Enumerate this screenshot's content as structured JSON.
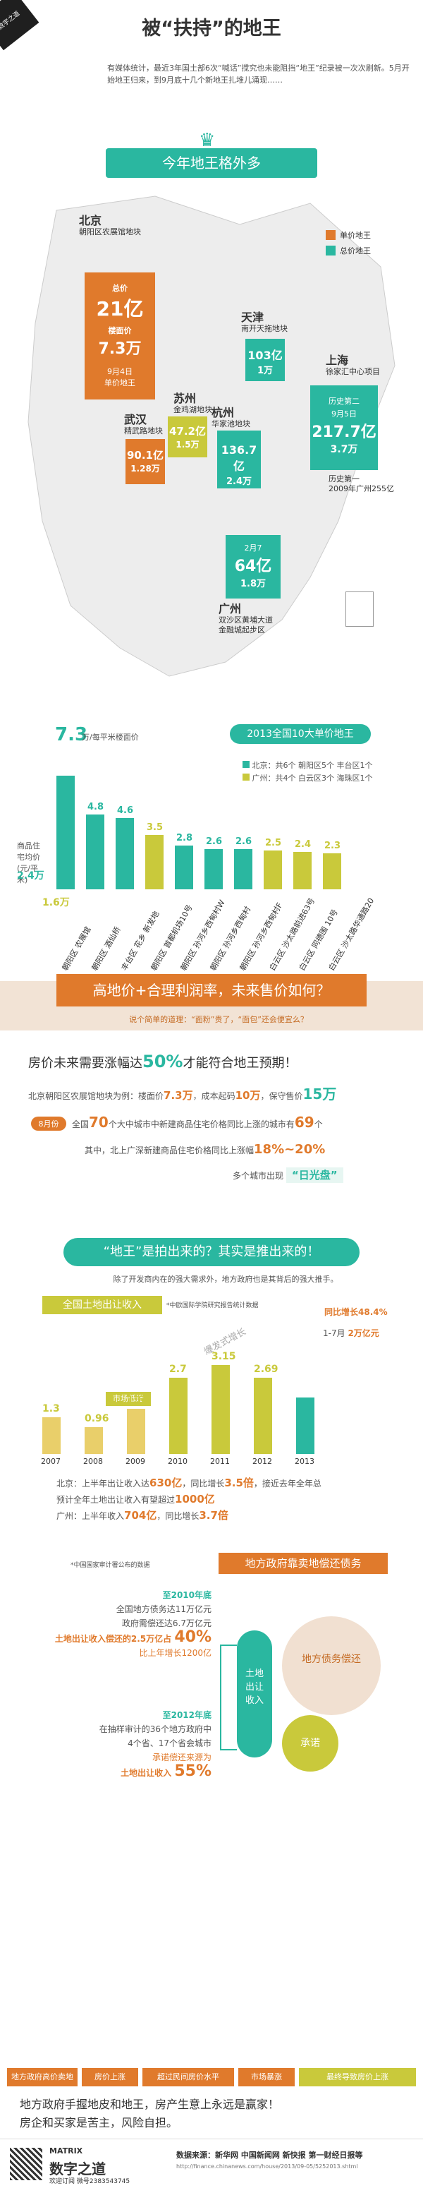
{
  "header": {
    "brand": "数字之道",
    "title": "被“扶持”的地王",
    "intro": "有媒体统计，最近3年国土部6次“喊话”搅究也未能阻挡“地王”纪录被一次次刷新。5月开始地王归来，到9月底十几个新地王扎堆儿涌现……",
    "watermark": "数字之道"
  },
  "section1": {
    "banner": "今年地王格外多",
    "legend": [
      "单价地王",
      "总价地王"
    ],
    "beijing": {
      "name": "北京",
      "sub": "朝阳区农展馆地块",
      "total_label": "总价",
      "total": "21亿",
      "unit_label": "楼面价",
      "unit": "7.3万",
      "date": "9月4日",
      "tag": "单价地王"
    },
    "tianjin": {
      "name": "天津",
      "sub": "南开天拖地块",
      "total": "103亿",
      "unit": "1万"
    },
    "suzhou": {
      "name": "苏州",
      "sub": "金鸡湖地块",
      "total": "47.2亿",
      "unit": "1.5万"
    },
    "hangzhou": {
      "name": "杭州",
      "sub": "华家池地块",
      "total": "136.7亿",
      "unit": "2.4万"
    },
    "shanghai": {
      "name": "上海",
      "sub": "徐家汇中心项目",
      "date": "9月5日",
      "note": "历史第二",
      "total": "217.7亿",
      "unit": "3.7万",
      "history": "历史第一",
      "history2": "2009年广州255亿"
    },
    "wuhan": {
      "name": "武汉",
      "sub": "精武路地块",
      "total": "90.1亿",
      "unit": "1.28万"
    },
    "guangzhou": {
      "name": "广州",
      "sub": "双沙区黄埔大道",
      "sub2": "金融城起步区",
      "date": "2月7",
      "total": "64亿",
      "unit": "1.8万"
    }
  },
  "section2": {
    "heading": "2013全国10大单价地王",
    "unit_label": "万/每平米楼面价",
    "axis_label": "商品住宅均价(元/平米)",
    "ref_beijing": "2.4万",
    "ref_guangzhou": "1.6万",
    "legend_beijing": "北京：共6个 朝阳区5个 丰台区1个",
    "legend_guangzhou": "广州：共4个 白云区3个 海珠区1个"
  },
  "chart_data": {
    "type": "bar",
    "title": "2013全国10大单价地王",
    "ylabel": "万/每平米楼面价",
    "categories": [
      "朝阳区 农展馆",
      "朝阳区 酒仙桥",
      "丰台区 花乡 新发地",
      "朝阳区 首都机场10号",
      "朝阳区 孙河乡西甸村W",
      "朝阳区 孙河乡西甸村",
      "朝阳区 孙河乡西甸村F",
      "白云区 沙太路前进63号",
      "白云区 同德围 10号",
      "白云区 沙太路华通路20"
    ],
    "values": [
      7.3,
      4.8,
      4.6,
      3.5,
      2.8,
      2.6,
      2.6,
      2.5,
      2.4,
      2.3
    ],
    "groups": [
      "北京",
      "北京",
      "北京",
      "广州",
      "北京",
      "北京",
      "北京",
      "广州",
      "广州",
      "广州"
    ]
  },
  "section3": {
    "question": "高地价+合理利润率，未来售价如何？",
    "subquestion": "说个简单的道理：“面粉”贵了，“面包”还会便宜么？",
    "headline_pre": "房价未来需要涨幅达",
    "headline_num": "50%",
    "headline_post": "才能符合地王预期！",
    "line1_pre": "北京朝阳区农展馆地块为例：楼面价",
    "line1_num": "7.3万",
    "line1_mid": "，成本起码",
    "line1_num2": "10万",
    "line1_mid2": "，保守售价",
    "line1_num3": "15万",
    "tag_month": "8月份",
    "line2_pre": "全国",
    "line2_num": "70",
    "line2_post": "个大中城市中新建商品住宅价格同比上涨的城市有",
    "line2_num2": "69",
    "line2_unit": "个",
    "line3_pre": "其中，北上广深新建商品住宅价格同比上涨幅",
    "line3_num": "18%~20%",
    "line4_pre": "多个城市出现",
    "line4_tag": "“日光盘”"
  },
  "section4": {
    "question": "“地王”是拍出来的？其实是推出来的！",
    "sub": "除了开发商内在的强大需求外，地方政府也是其背后的强大推手。",
    "income_title": "全国土地出让收入",
    "income_note": "*中欧国际学院研究报告统计数据",
    "growth_label": "同比增长",
    "growth_value": "48.4%",
    "ytd_label": "1-7月",
    "ytd_value": "2万亿元",
    "explosive": "爆发式增长",
    "market": "市场低迷",
    "unit": "万亿元",
    "summary1_pre": "北京：上半年出让收入达",
    "summary1_num": "630亿",
    "summary1_mid": "，同比增长",
    "summary1_num2": "3.5倍",
    "summary1_post": "，接近去年全年总",
    "summary2_pre": "预计全年土地出让收入有望超过",
    "summary2_num": "1000亿",
    "summary3_pre": "广州：上半年收入",
    "summary3_num": "704亿",
    "summary3_mid": "，同比增长",
    "summary3_num2": "3.7倍"
  },
  "income_chart": {
    "type": "bar",
    "unit": "万亿元",
    "categories": [
      "2007",
      "2008",
      "2009",
      "2010",
      "2011",
      "2012",
      "2013"
    ],
    "values": [
      1.3,
      0.96,
      1.6,
      2.7,
      3.15,
      2.69,
      2.0
    ]
  },
  "section5": {
    "heading": "地方政府靠卖地偿还债务",
    "note": "*中国国家审计署公布的数据",
    "y2010": "至2010年底",
    "l1": "全国地方债务达11万亿元",
    "l2": "政府需偿还达6.7万亿元",
    "l3_pre": "土地出让收入偿还的",
    "l3_num": "2.5万亿",
    "l3_post": "占",
    "l3_pct": "40%",
    "l4": "比上年增长1200亿",
    "y2012": "至2012年底",
    "l5": "在抽样审计的36个地方政府中",
    "l6": "4个省、17个省会城市",
    "l7_pre": "承诺偿还来源为",
    "l7": "土地出让收入",
    "l7_pct": "55%",
    "circle_left": "土地出让收入",
    "circle_center": "地方债务偿还",
    "circle_bottom": "承诺"
  },
  "section6": {
    "flow": [
      "地方政府高价卖地",
      "房价上涨",
      "超过民间房价水平",
      "市场暴涨",
      "最终导致房价上涨"
    ],
    "conclusion1": "地方政府手握地皮和地王，房产生意上永远是赢家！",
    "conclusion2": "房企和买家是苦主，风险自担。"
  },
  "footer": {
    "source": "数据来源：新华网 中国新闻网 新快报 第一财经日报等",
    "links": "http://finance.chinanews.com/house/2013/09-05/5252013.shtml",
    "brand1": "MATRIX",
    "brand2": "数字之道",
    "contact": "欢迎订阅 微号2383543745"
  },
  "colors": {
    "teal": "#2ab7a0",
    "orange": "#e07a2c",
    "lime": "#c9c93b"
  }
}
